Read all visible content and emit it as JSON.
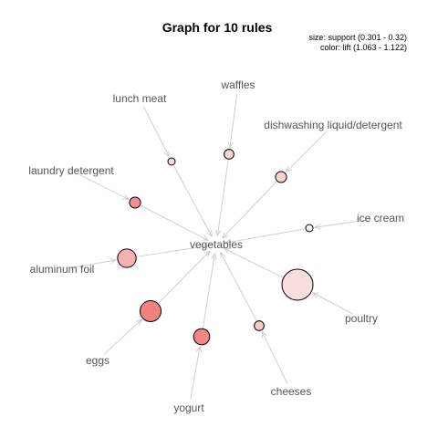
{
  "graph": {
    "title": "Graph for 10 rules",
    "legend_size": "size: support (0.301 - 0.32)",
    "legend_color": "color: lift (1.063 - 1.122)",
    "center_item": "vegetables",
    "items": [
      {
        "label": "lunch meat",
        "support": 0.301,
        "lift": 1.065,
        "color": "#fbdcdc"
      },
      {
        "label": "waffles",
        "support": 0.303,
        "lift": 1.075,
        "color": "#f9d3d3"
      },
      {
        "label": "dishwashing liquid/detergent",
        "support": 0.304,
        "lift": 1.078,
        "color": "#f8d0d0"
      },
      {
        "label": "laundry detergent",
        "support": 0.304,
        "lift": 1.112,
        "color": "#f29090"
      },
      {
        "label": "ice cream",
        "support": 0.301,
        "lift": 1.063,
        "color": "#fdf2f2"
      },
      {
        "label": "aluminum foil",
        "support": 0.31,
        "lift": 1.09,
        "color": "#f6b2b2"
      },
      {
        "label": "poultry",
        "support": 0.32,
        "lift": 1.07,
        "color": "#f9dede"
      },
      {
        "label": "eggs",
        "support": 0.312,
        "lift": 1.122,
        "color": "#f08282"
      },
      {
        "label": "cheeses",
        "support": 0.303,
        "lift": 1.078,
        "color": "#f8caca"
      },
      {
        "label": "yogurt",
        "support": 0.308,
        "lift": 1.12,
        "color": "#f08686"
      }
    ]
  }
}
